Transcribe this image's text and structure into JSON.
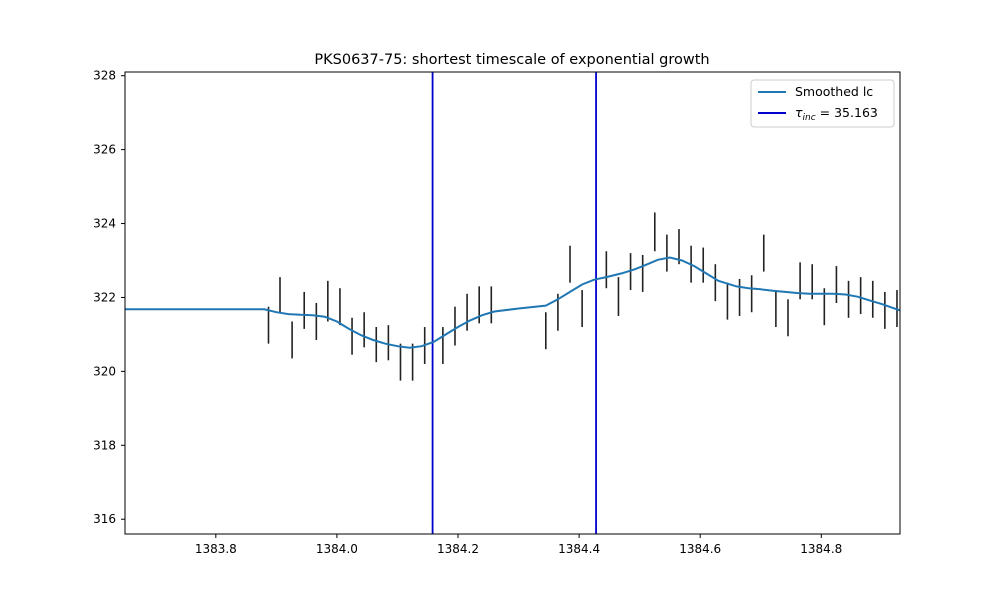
{
  "chart_data": {
    "type": "line",
    "title": "PKS0637-75: shortest timescale of exponential growth",
    "xlabel": "",
    "ylabel": "",
    "xlim": [
      1383.65,
      1384.93
    ],
    "ylim": [
      315.6,
      328.1
    ],
    "xticks": [
      "1383.8",
      "1384.0",
      "1384.2",
      "1384.4",
      "1384.6",
      "1384.8"
    ],
    "xtick_values": [
      1383.8,
      1384.0,
      1384.2,
      1384.4,
      1384.6,
      1384.8
    ],
    "yticks": [
      "316",
      "318",
      "320",
      "322",
      "324",
      "326",
      "328"
    ],
    "ytick_values": [
      316,
      318,
      320,
      322,
      324,
      326,
      328
    ],
    "grid": false,
    "legend_position": "top-right",
    "smoothed_lc": {
      "name": "Smoothed lc",
      "color": "#1f77b4",
      "x": [
        1383.65,
        1383.88,
        1383.9,
        1383.92,
        1383.94,
        1383.96,
        1383.98,
        1384.0,
        1384.02,
        1384.04,
        1384.06,
        1384.08,
        1384.1,
        1384.12,
        1384.14,
        1384.16,
        1384.18,
        1384.2,
        1384.22,
        1384.24,
        1384.26,
        1384.3,
        1384.345,
        1384.365,
        1384.385,
        1384.405,
        1384.425,
        1384.445,
        1384.47,
        1384.49,
        1384.51,
        1384.53,
        1384.55,
        1384.57,
        1384.59,
        1384.61,
        1384.63,
        1384.66,
        1384.68,
        1384.7,
        1384.72,
        1384.74,
        1384.76,
        1384.78,
        1384.8,
        1384.82,
        1384.84,
        1384.86,
        1384.88,
        1384.9,
        1384.93
      ],
      "y": [
        321.68,
        321.68,
        321.6,
        321.55,
        321.53,
        321.52,
        321.48,
        321.35,
        321.15,
        320.98,
        320.85,
        320.75,
        320.68,
        320.64,
        320.68,
        320.8,
        321.0,
        321.2,
        321.38,
        321.52,
        321.62,
        321.7,
        321.78,
        321.95,
        322.15,
        322.35,
        322.48,
        322.55,
        322.65,
        322.75,
        322.88,
        323.02,
        323.08,
        323.0,
        322.85,
        322.65,
        322.45,
        322.3,
        322.25,
        322.22,
        322.18,
        322.15,
        322.12,
        322.1,
        322.1,
        322.1,
        322.08,
        322.02,
        321.92,
        321.82,
        321.65
      ]
    },
    "vlines": {
      "name": "τ_inc = 35.163",
      "color": "#0000cc",
      "x": [
        1384.158,
        1384.428
      ]
    },
    "errorbars": {
      "color": "#222222",
      "x": [
        1383.887,
        1383.906,
        1383.926,
        1383.946,
        1383.966,
        1383.985,
        1384.005,
        1384.025,
        1384.045,
        1384.065,
        1384.085,
        1384.105,
        1384.125,
        1384.145,
        1384.175,
        1384.195,
        1384.215,
        1384.235,
        1384.255,
        1384.345,
        1384.365,
        1384.385,
        1384.405,
        1384.445,
        1384.465,
        1384.485,
        1384.505,
        1384.525,
        1384.545,
        1384.565,
        1384.585,
        1384.605,
        1384.625,
        1384.645,
        1384.665,
        1384.685,
        1384.705,
        1384.725,
        1384.745,
        1384.765,
        1384.785,
        1384.805,
        1384.825,
        1384.845,
        1384.865,
        1384.885,
        1384.905,
        1384.925
      ],
      "low": [
        320.75,
        321.6,
        320.35,
        321.15,
        320.85,
        321.35,
        321.25,
        320.45,
        320.65,
        320.25,
        320.3,
        319.75,
        319.75,
        320.2,
        320.2,
        320.7,
        321.1,
        321.3,
        321.3,
        320.6,
        321.1,
        322.4,
        321.2,
        322.25,
        321.5,
        322.2,
        322.15,
        323.25,
        322.7,
        322.9,
        322.4,
        322.4,
        321.9,
        321.4,
        321.5,
        321.6,
        322.7,
        321.2,
        320.95,
        321.95,
        321.95,
        321.25,
        321.85,
        321.45,
        321.55,
        321.45,
        321.15,
        321.2
      ],
      "high": [
        321.75,
        322.55,
        321.35,
        322.15,
        321.85,
        322.45,
        322.25,
        321.45,
        321.6,
        321.2,
        321.25,
        320.75,
        320.75,
        321.2,
        321.2,
        321.75,
        322.1,
        322.3,
        322.3,
        321.6,
        322.1,
        323.4,
        322.2,
        323.25,
        322.55,
        323.2,
        323.15,
        324.3,
        323.7,
        323.85,
        323.4,
        323.35,
        322.9,
        322.4,
        322.5,
        322.6,
        323.7,
        322.2,
        321.95,
        322.95,
        322.9,
        322.25,
        322.85,
        322.45,
        322.55,
        322.45,
        322.15,
        322.2
      ]
    },
    "legend": {
      "lc_label": "Smoothed lc",
      "tau_symbol": "τ",
      "tau_subscript": "inc",
      "tau_value": " = 35.163"
    }
  }
}
